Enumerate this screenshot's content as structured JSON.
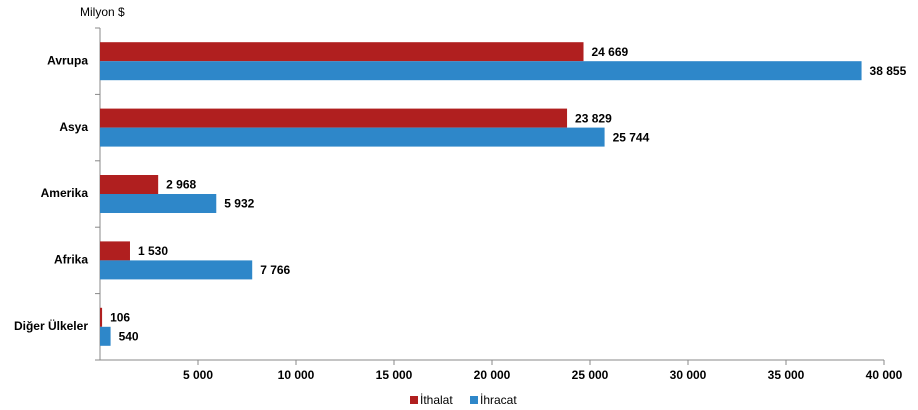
{
  "chart_data": {
    "type": "hbar",
    "x_label": "Milyon $",
    "categories": [
      "Avrupa",
      "Asya",
      "Amerika",
      "Afrika",
      "Diğer Ülkeler"
    ],
    "series": [
      {
        "name": "İthalat",
        "color": "#b01f1f",
        "values": [
          24669,
          23829,
          2968,
          1530,
          106
        ],
        "value_labels": [
          "24 669",
          "23 829",
          "2 968",
          "1 530",
          "106"
        ]
      },
      {
        "name": "İhracat",
        "color": "#2e87c9",
        "values": [
          38855,
          25744,
          5932,
          7766,
          540
        ],
        "value_labels": [
          "38 855",
          "25 744",
          "5 932",
          "7 766",
          "540"
        ]
      }
    ],
    "xlim": [
      0,
      40000
    ],
    "xticks": [
      {
        "value": 5000,
        "label": "5 000"
      },
      {
        "value": 10000,
        "label": "10 000"
      },
      {
        "value": 15000,
        "label": "15 000"
      },
      {
        "value": 20000,
        "label": "20 000"
      },
      {
        "value": 25000,
        "label": "25 000"
      },
      {
        "value": 30000,
        "label": "30 000"
      },
      {
        "value": 35000,
        "label": "35 000"
      },
      {
        "value": 40000,
        "label": "40 000"
      }
    ],
    "legend": "bottom"
  }
}
